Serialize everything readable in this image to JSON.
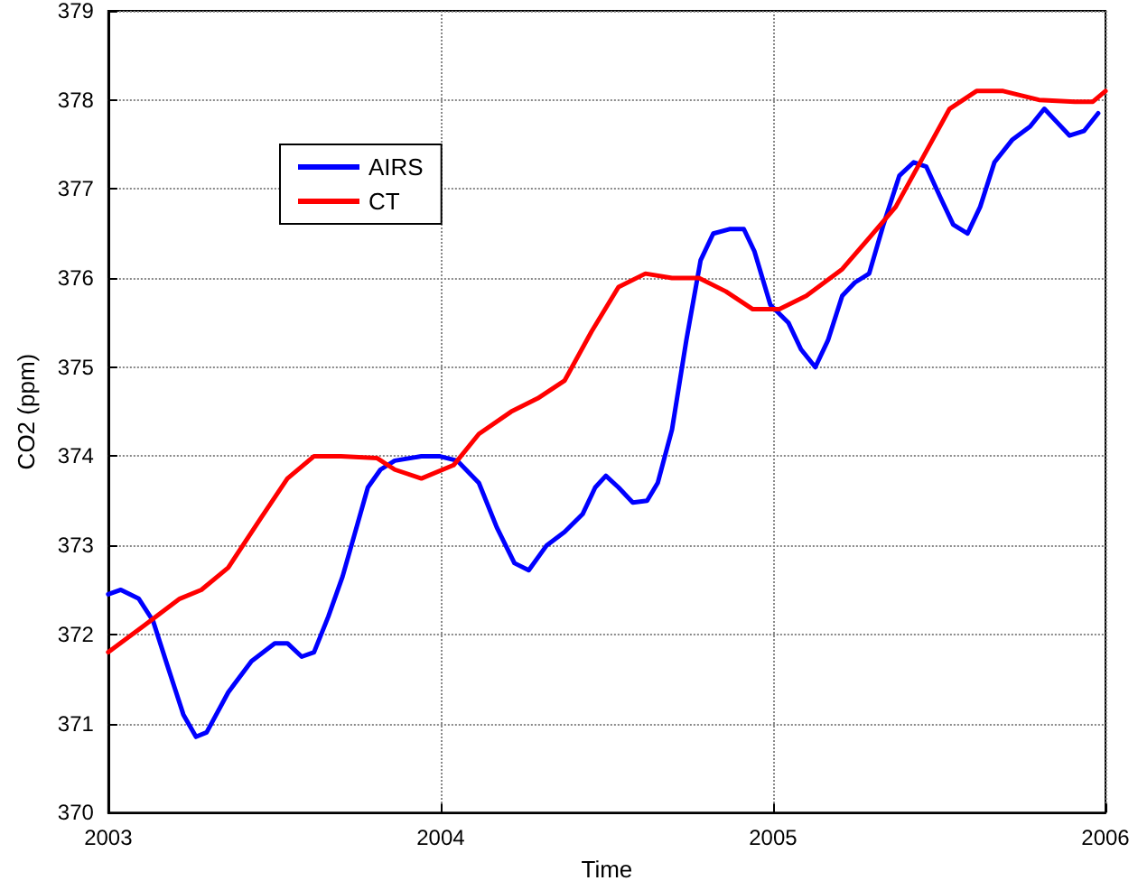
{
  "chart_data": {
    "type": "line",
    "xlabel": "Time",
    "ylabel": "CO2 (ppm)",
    "xlim": [
      2003,
      2006
    ],
    "xticks": [
      2003,
      2004,
      2005,
      2006
    ],
    "ylim": [
      370,
      379
    ],
    "yticks": [
      370,
      371,
      372,
      373,
      374,
      375,
      376,
      377,
      378,
      379
    ],
    "grid": true,
    "legend": "top left",
    "marker": "none",
    "line_style": "solid",
    "series": [
      {
        "name": "AIRS",
        "color": "#0000ff",
        "x": [
          2003,
          2003.038,
          2003.092,
          2003.135,
          2003.178,
          2003.226,
          2003.264,
          2003.296,
          2003.361,
          2003.431,
          2003.501,
          2003.539,
          2003.582,
          2003.619,
          2003.662,
          2003.705,
          2003.743,
          2003.781,
          2003.819,
          2003.862,
          2003.942,
          2003.996,
          2004.05,
          2004.115,
          2004.169,
          2004.222,
          2004.265,
          2004.319,
          2004.373,
          2004.427,
          2004.465,
          2004.497,
          2004.535,
          2004.578,
          2004.621,
          2004.653,
          2004.696,
          2004.739,
          2004.782,
          2004.82,
          2004.869,
          2004.912,
          2004.944,
          2004.992,
          2005.046,
          2005.084,
          2005.127,
          2005.165,
          2005.208,
          2005.246,
          2005.289,
          2005.332,
          2005.38,
          2005.423,
          2005.461,
          2005.504,
          2005.542,
          2005.585,
          2005.623,
          2005.666,
          2005.719,
          2005.773,
          2005.816,
          2005.854,
          2005.892,
          2005.935,
          2005.978
        ],
        "values": [
          372.45,
          372.5,
          372.4,
          372.15,
          371.65,
          371.1,
          370.85,
          370.9,
          371.35,
          371.7,
          371.9,
          371.9,
          371.75,
          371.8,
          372.2,
          372.65,
          373.15,
          373.65,
          373.85,
          373.95,
          374,
          374,
          373.95,
          373.7,
          373.2,
          372.8,
          372.72,
          373,
          373.15,
          373.35,
          373.65,
          373.78,
          373.65,
          373.48,
          373.5,
          373.7,
          374.3,
          375.3,
          376.2,
          376.5,
          376.55,
          376.55,
          376.3,
          375.7,
          375.5,
          375.2,
          375,
          375.3,
          375.8,
          375.95,
          376.05,
          376.6,
          377.15,
          377.3,
          377.25,
          376.9,
          376.6,
          376.5,
          376.8,
          377.3,
          377.55,
          377.7,
          377.9,
          377.75,
          377.6,
          377.65,
          377.85
        ]
      },
      {
        "name": "CT",
        "color": "#ff0000",
        "x": [
          2003,
          2003.108,
          2003.215,
          2003.28,
          2003.361,
          2003.458,
          2003.539,
          2003.619,
          2003.7,
          2003.808,
          2003.862,
          2003.942,
          2004.039,
          2004.115,
          2004.212,
          2004.292,
          2004.373,
          2004.454,
          2004.535,
          2004.616,
          2004.696,
          2004.777,
          2004.858,
          2004.939,
          2005.019,
          2005.1,
          2005.208,
          2005.289,
          2005.369,
          2005.45,
          2005.531,
          2005.612,
          2005.692,
          2005.8,
          2005.908,
          2005.962,
          2006
        ],
        "values": [
          371.8,
          372.1,
          372.4,
          372.5,
          372.75,
          373.3,
          373.75,
          374,
          374,
          373.98,
          373.85,
          373.75,
          373.9,
          374.25,
          374.5,
          374.65,
          374.85,
          375.4,
          375.9,
          376.05,
          376,
          376,
          375.85,
          375.65,
          375.65,
          375.8,
          376.1,
          376.45,
          376.8,
          377.35,
          377.9,
          378.1,
          378.1,
          378,
          377.98,
          377.98,
          378.1
        ]
      }
    ]
  }
}
